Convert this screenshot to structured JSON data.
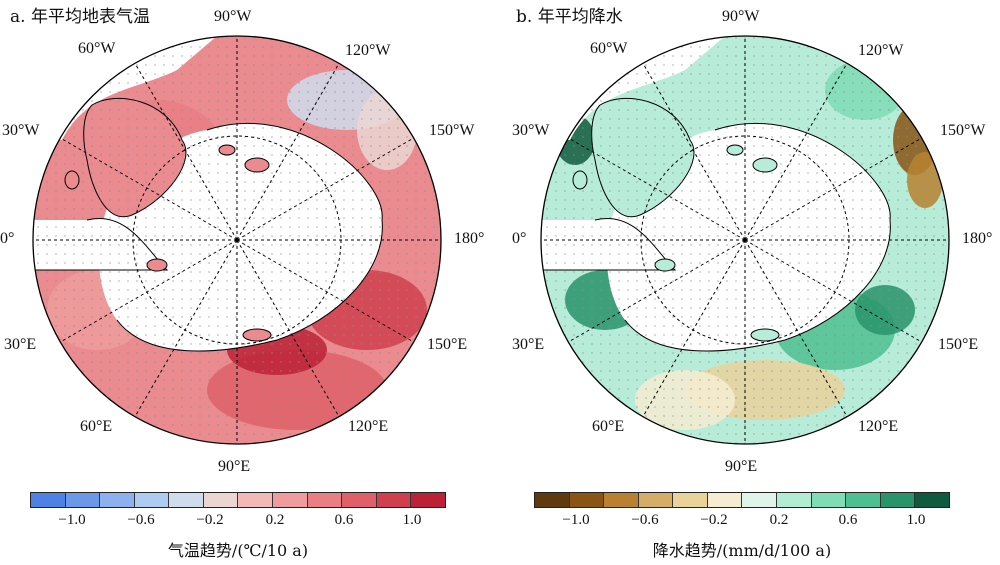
{
  "panels": [
    {
      "title": "a. 年平均地表气温",
      "variable": "年平均地表气温",
      "colorbar": {
        "title": "气温趋势/(℃/10 a)",
        "ticks": [
          "−1.0",
          "−0.6",
          "−0.2",
          "0.2",
          "0.6",
          "1.0"
        ],
        "colors": [
          "#4f80e3",
          "#6c98e8",
          "#8cb1ee",
          "#aecbf2",
          "#cfdcee",
          "#ebd6d2",
          "#f3b9b6",
          "#ef9c9e",
          "#e97e84",
          "#df6069",
          "#cf3f4d",
          "#bb2236"
        ]
      },
      "fill_color": "#ea8b8f",
      "dominant_trend": "warming"
    },
    {
      "title": "b. 年平均降水",
      "variable": "年平均降水",
      "colorbar": {
        "title": "降水趋势/(mm/d/100 a)",
        "ticks": [
          "−1.0",
          "−0.6",
          "−0.2",
          "0.2",
          "0.6",
          "1.0"
        ],
        "colors": [
          "#5e3a0c",
          "#8a5514",
          "#b8812f",
          "#d5ad67",
          "#ead29b",
          "#f6ecd2",
          "#dff5ea",
          "#b2ecd3",
          "#7fdcb5",
          "#4dbf90",
          "#29936a",
          "#105b3e"
        ]
      },
      "fill_color": "#b7ecd8",
      "dominant_trend": "wetting"
    }
  ],
  "longitude_labels": {
    "lon_90w": "90°W",
    "lon_120w": "120°W",
    "lon_150w": "150°W",
    "lon_180": "180°",
    "lon_150e": "150°E",
    "lon_120e": "120°E",
    "lon_90e": "90°E",
    "lon_60e": "60°E",
    "lon_30e": "30°E",
    "lon_0": "0°",
    "lon_30w": "30°W",
    "lon_60w": "60°W"
  }
}
